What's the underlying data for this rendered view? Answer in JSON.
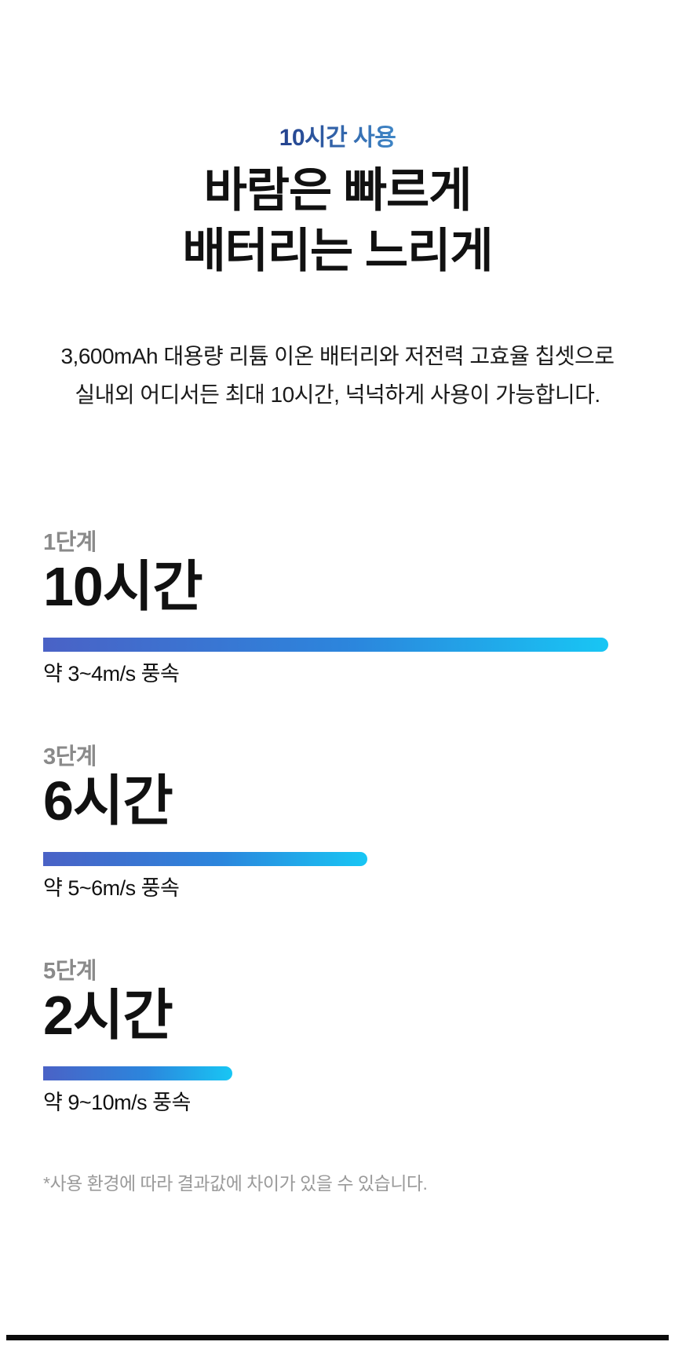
{
  "header": {
    "eyebrow": "10시간 사용",
    "title_line1": "바람은 빠르게",
    "title_line2": "배터리는 느리게",
    "description_line1": "3,600mAh 대용량 리튬 이온 배터리와 저전력 고효율 칩셋으로",
    "description_line2": "실내외 어디서든 최대 10시간, 넉넉하게 사용이 가능합니다."
  },
  "stages": [
    {
      "label": "1단계",
      "duration": "10시간",
      "wind_speed": "약 3~4m/s 풍속",
      "bar_style": "width:96%"
    },
    {
      "label": "3단계",
      "duration": "6시간",
      "wind_speed": "약 5~6m/s 풍속",
      "bar_style": "width:55.1%"
    },
    {
      "label": "5단계",
      "duration": "2시간",
      "wind_speed": "약 9~10m/s 풍속",
      "bar_style": "width:32.1%"
    }
  ],
  "footnote": "*사용 환경에 따라 결과값에 차이가 있을 수 있습니다.",
  "colors": {
    "eyebrow_text_gradient_start": "#24418d",
    "eyebrow_text_gradient_end": "#3f86c6",
    "bar_gradient_start": "#4a62c6",
    "bar_gradient_mid": "#2b86dd",
    "bar_gradient_end": "#18c6f4",
    "stage_label": "#8a8a8a",
    "body_text": "#111111",
    "footnote_text": "#9a9a9a",
    "bottom_divider": "#0b0b0b",
    "background": "#ffffff"
  },
  "chart_data": {
    "type": "bar",
    "orientation": "horizontal",
    "title": "10시간 사용 — 바람은 빠르게 배터리는 느리게",
    "subtitle": "3,600mAh 대용량 리튬 이온 배터리와 저전력 고효율 칩셋으로 실내외 어디서든 최대 10시간, 넉넉하게 사용이 가능합니다.",
    "categories": [
      "1단계",
      "3단계",
      "5단계"
    ],
    "values": [
      10,
      6,
      2
    ],
    "unit": "시간",
    "value_labels": [
      "10시간",
      "6시간",
      "2시간"
    ],
    "annotations": [
      "약 3~4m/s 풍속",
      "약 5~6m/s 풍속",
      "약 9~10m/s 풍속"
    ],
    "bar_length_pct_of_track": [
      96,
      55.1,
      32.1
    ],
    "xlim": [
      0,
      10.4
    ],
    "grid": false,
    "legend": false,
    "bar_color_gradient": [
      "#4a62c6",
      "#18c6f4"
    ],
    "footnote": "*사용 환경에 따라 결과값에 차이가 있을 수 있습니다."
  }
}
